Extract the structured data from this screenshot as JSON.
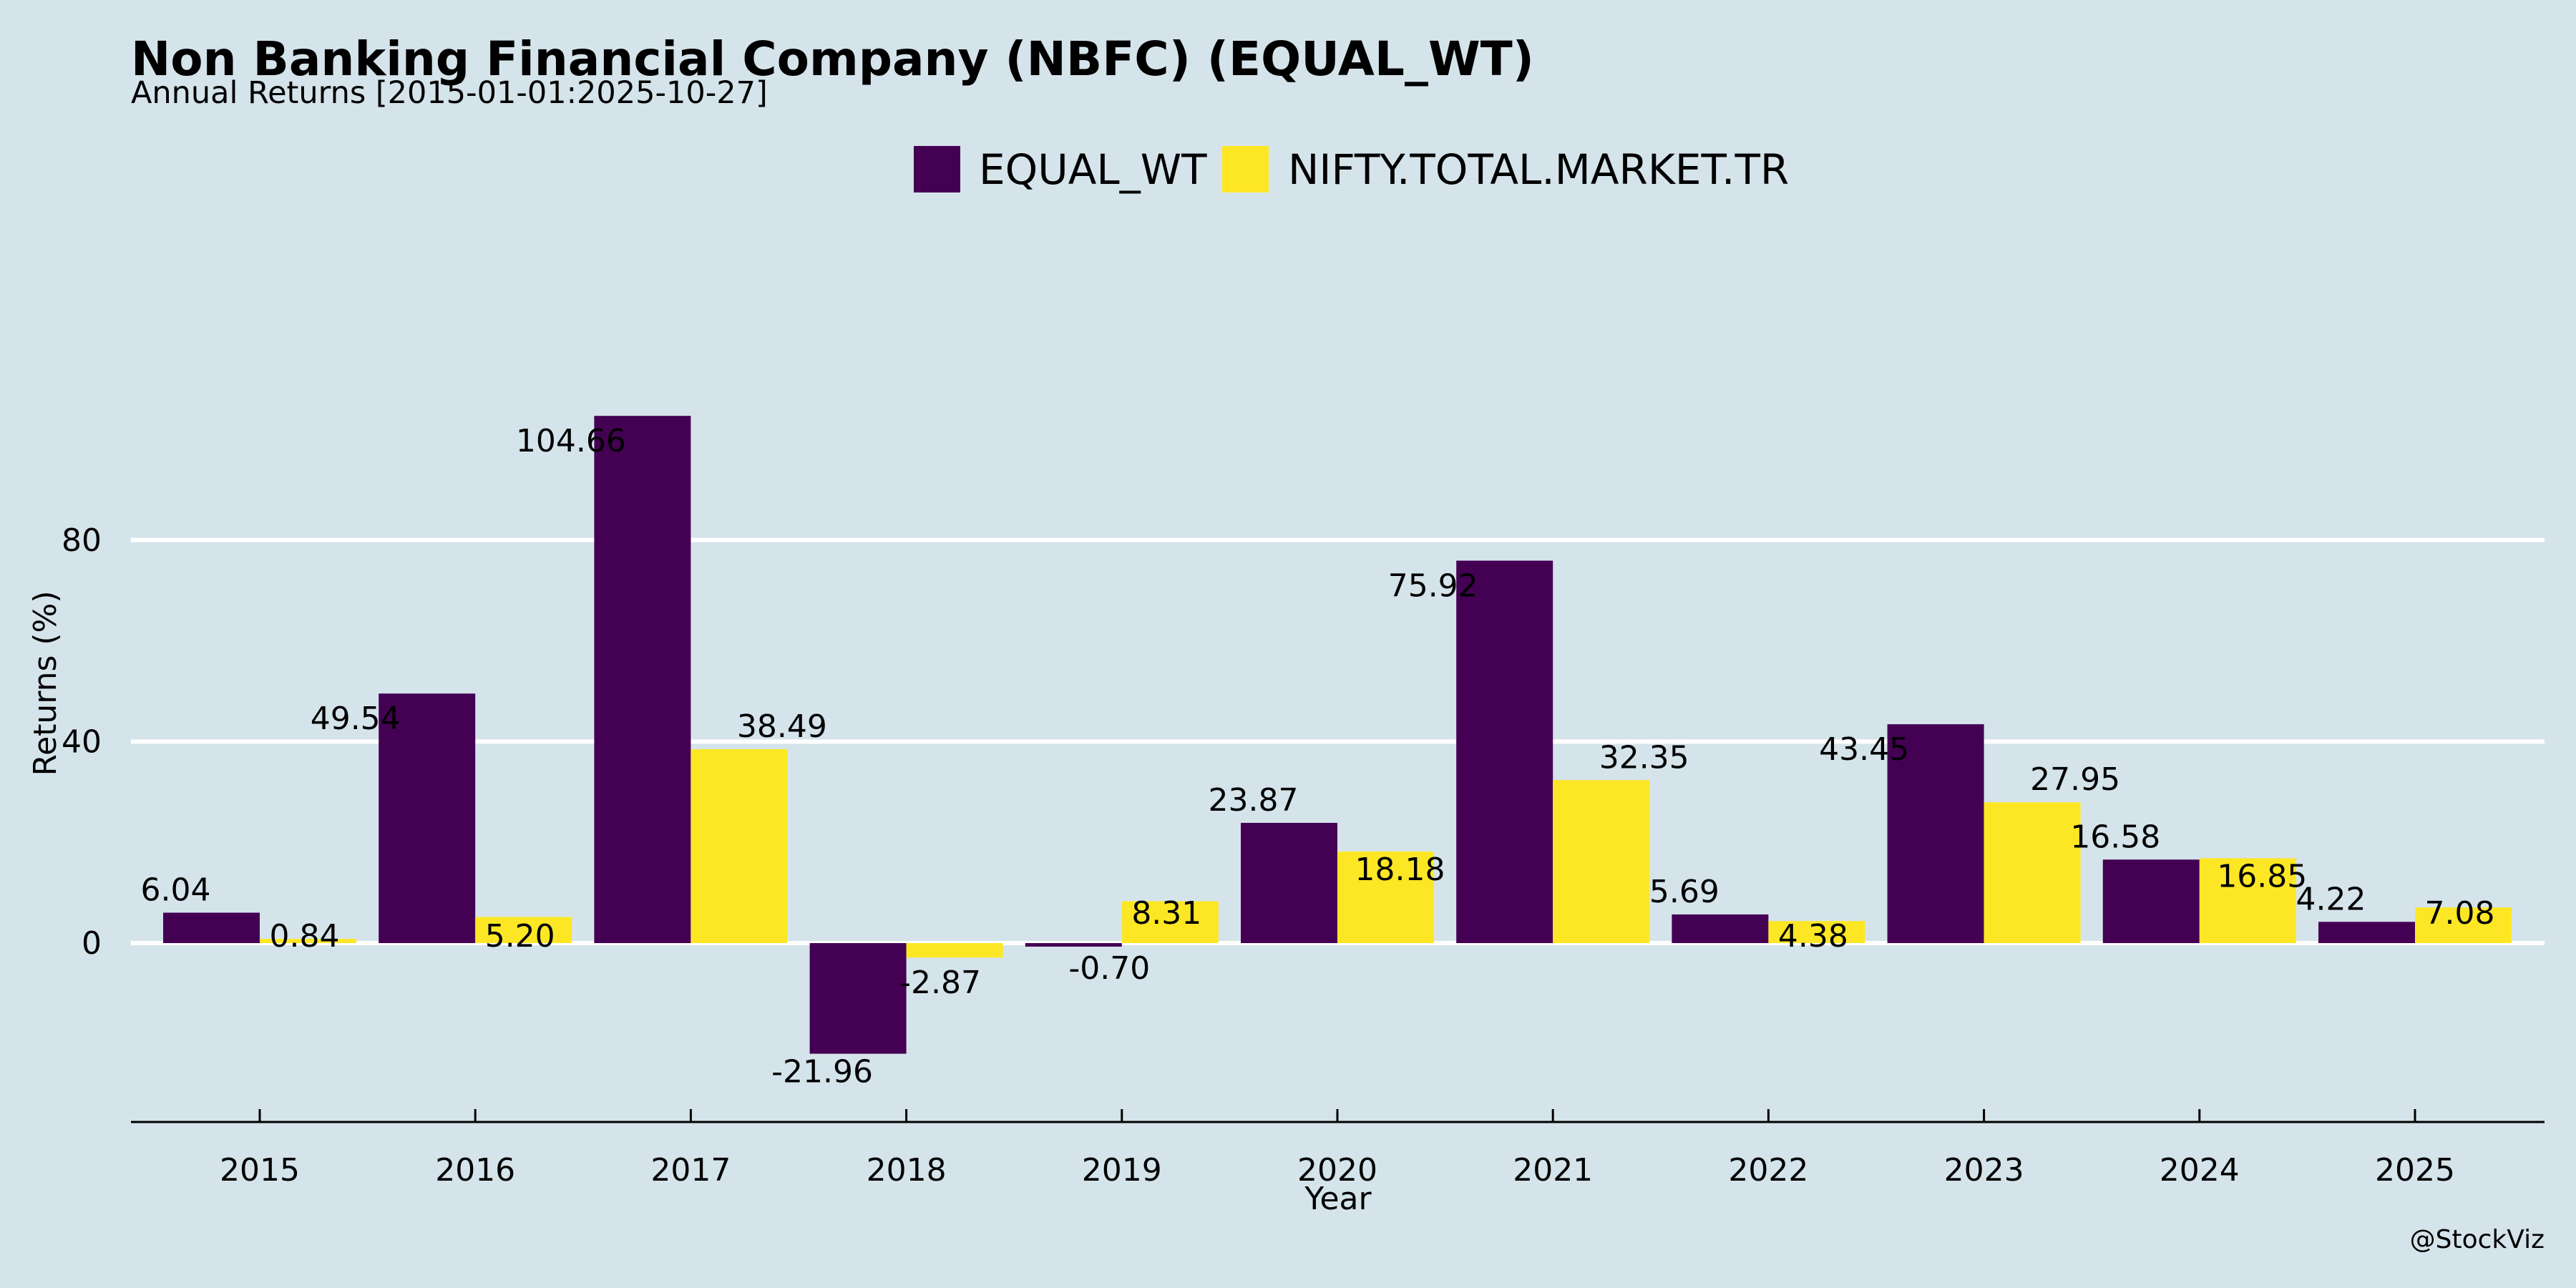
{
  "colors": {
    "background": "#d5e4eb",
    "grid": "#ffffff",
    "axis": "#000000"
  },
  "chart_data": {
    "type": "bar",
    "title": "Non Banking Financial Company (NBFC) (EQUAL_WT)",
    "subtitle": "Annual Returns [2015-01-01:2025-10-27]",
    "xlabel": "Year",
    "ylabel": "Returns (%)",
    "categories": [
      "2015",
      "2016",
      "2017",
      "2018",
      "2019",
      "2020",
      "2021",
      "2022",
      "2023",
      "2024",
      "2025"
    ],
    "series": [
      {
        "name": "EQUAL_WT",
        "color": "#440154",
        "values": [
          6.04,
          49.54,
          104.66,
          -21.96,
          -0.7,
          23.87,
          75.92,
          5.69,
          43.45,
          16.58,
          4.22
        ],
        "labels": [
          "6.04",
          "49.54",
          "104.66",
          "-21.96",
          "-0.70",
          "23.87",
          "75.92",
          "5.69",
          "43.45",
          "16.58",
          "4.22"
        ]
      },
      {
        "name": "NIFTY.TOTAL.MARKET.TR",
        "color": "#fde725",
        "values": [
          0.84,
          5.2,
          38.49,
          -2.87,
          8.31,
          18.18,
          32.35,
          4.38,
          27.95,
          16.85,
          7.08
        ],
        "labels": [
          "0.84",
          "5.20",
          "38.49",
          "-2.87",
          "8.31",
          "18.18",
          "32.35",
          "4.38",
          "27.95",
          "16.85",
          "7.08"
        ]
      }
    ],
    "yticks": [
      0,
      40,
      80
    ],
    "ytick_labels": [
      "0",
      "40",
      "80"
    ],
    "ylim": [
      -28.5,
      119
    ],
    "grid": true,
    "legend_position": "top-center"
  },
  "credit": "@StockViz"
}
